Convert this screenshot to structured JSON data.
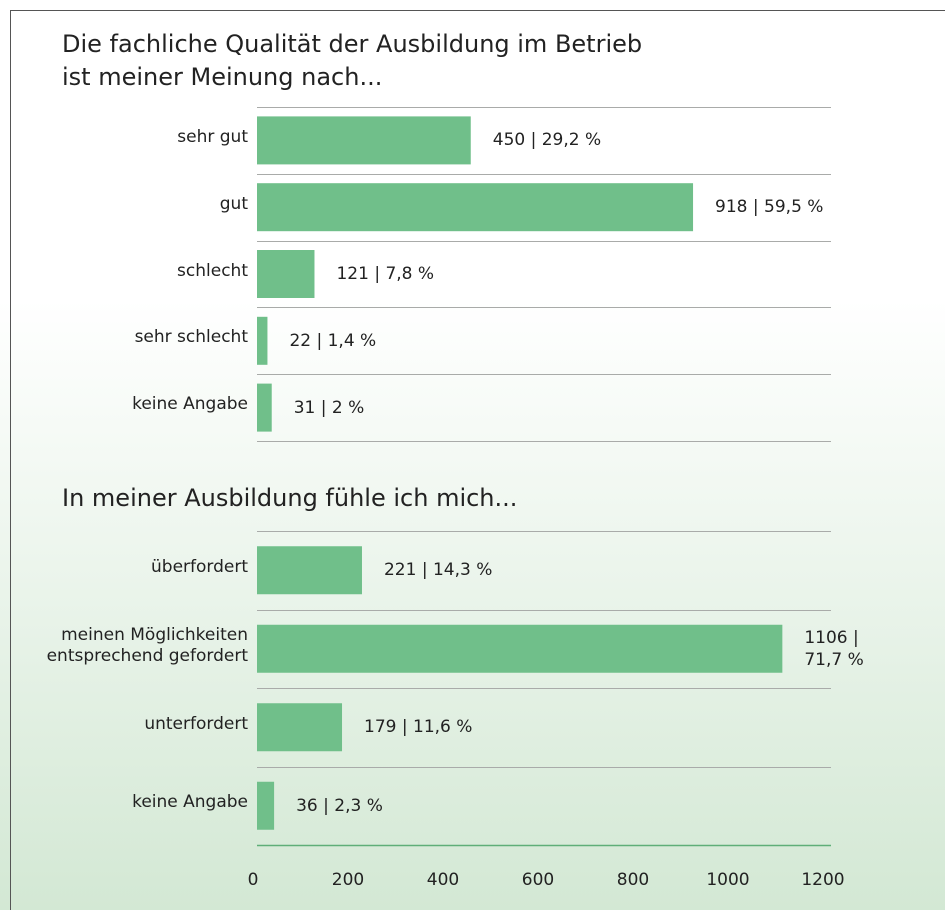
{
  "chart_data": [
    {
      "type": "bar",
      "orientation": "horizontal",
      "title": "Die fachliche Qualität der Ausbildung im Betrieb ist meiner Meinung nach...",
      "categories": [
        "sehr gut",
        "gut",
        "schlecht",
        "sehr schlecht",
        "keine Angabe"
      ],
      "values": [
        450,
        918,
        121,
        22,
        31
      ],
      "value_labels": [
        "450 | 29,2 %",
        "918 | 59,5 %",
        "121 | 7,8 %",
        "22 | 1,4 %",
        "31 | 2 %"
      ],
      "color": "#70bf8a",
      "xlim": [
        0,
        1200
      ]
    },
    {
      "type": "bar",
      "orientation": "horizontal",
      "title": "In meiner Ausbildung fühle ich mich...",
      "categories": [
        "überfordert",
        "meinen Möglichkeiten entsprechend gefordert",
        "unterfordert",
        "keine Angabe"
      ],
      "values": [
        221,
        1106,
        179,
        36
      ],
      "value_labels": [
        "221 | 14,3 %",
        "1106 | 71,7 %",
        "179 | 11,6 %",
        "36 | 2,3 %"
      ],
      "color": "#70bf8a",
      "xlim": [
        0,
        1200
      ],
      "xticks": [
        0,
        200,
        400,
        600,
        800,
        1000,
        1200
      ]
    }
  ]
}
